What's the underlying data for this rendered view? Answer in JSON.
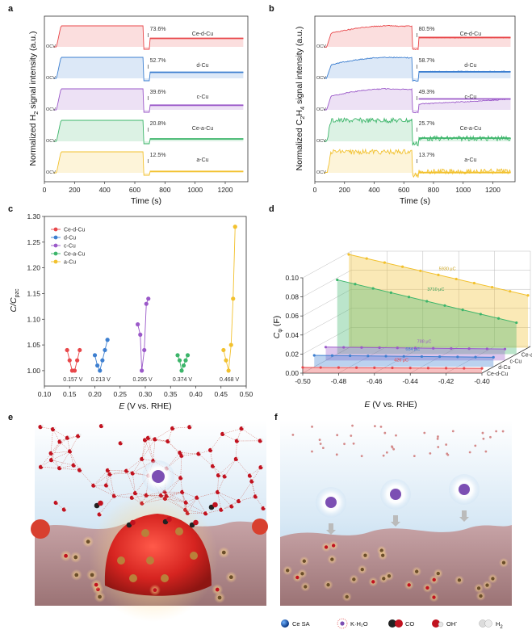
{
  "panels": {
    "a": "a",
    "b": "b",
    "c": "c",
    "d": "d",
    "e": "e",
    "f": "f"
  },
  "ocv_label": "OCV",
  "colors": {
    "Ce-d-Cu": "#e8474a",
    "d-Cu": "#3d7fd0",
    "c-Cu": "#9b59c9",
    "Ce-a-Cu": "#3cb56a",
    "a-Cu": "#f2c12e"
  },
  "chart_data": [
    {
      "type": "line",
      "id": "a",
      "xlabel": "Time (s)",
      "ylabel_parts": [
        "Normalized H",
        "2",
        " signal intensity (a.u.)"
      ],
      "xlim": [
        0,
        1350
      ],
      "xticks": [
        0,
        200,
        400,
        600,
        800,
        1000,
        1200
      ],
      "series": [
        {
          "name": "Ce-d-Cu",
          "percent": "73.6%"
        },
        {
          "name": "d-Cu",
          "percent": "52.7%"
        },
        {
          "name": "c-Cu",
          "percent": "39.6%"
        },
        {
          "name": "Ce-a-Cu",
          "percent": "20.8%"
        },
        {
          "name": "a-Cu",
          "percent": "12.5%"
        }
      ]
    },
    {
      "type": "line",
      "id": "b",
      "xlabel": "Time (s)",
      "ylabel_parts": [
        "Normalized C",
        "2",
        "H",
        "4",
        " signal intensity (a.u.)"
      ],
      "xlim": [
        0,
        1350
      ],
      "xticks": [
        0,
        200,
        400,
        600,
        800,
        1000,
        1200
      ],
      "series": [
        {
          "name": "Ce-d-Cu",
          "percent": "80.5%"
        },
        {
          "name": "d-Cu",
          "percent": "58.7%"
        },
        {
          "name": "c-Cu",
          "percent": "49.3%"
        },
        {
          "name": "Ce-a-Cu",
          "percent": "25.7%"
        },
        {
          "name": "a-Cu",
          "percent": "13.7%"
        }
      ]
    },
    {
      "type": "scatter",
      "id": "c",
      "xlabel_parts": [
        "E",
        " (V vs. RHE)"
      ],
      "ylabel_parts": [
        "C/C",
        "pzc"
      ],
      "xlim": [
        0.1,
        0.5
      ],
      "ylim": [
        0.97,
        1.3
      ],
      "xticks": [
        "0.10",
        "0.15",
        "0.20",
        "0.25",
        "0.30",
        "0.35",
        "0.40",
        "0.45",
        "0.50"
      ],
      "yticks": [
        "1.00",
        "1.05",
        "1.10",
        "1.15",
        "1.20",
        "1.25",
        "1.30"
      ],
      "legend": "top-left",
      "series": [
        {
          "name": "Ce-d-Cu",
          "pzc": "0.157 V",
          "x": [
            0.145,
            0.15,
            0.155,
            0.16,
            0.165,
            0.17
          ],
          "y": [
            1.04,
            1.02,
            1.0,
            1.0,
            1.02,
            1.04
          ]
        },
        {
          "name": "d-Cu",
          "pzc": "0.213 V",
          "x": [
            0.2,
            0.205,
            0.21,
            0.215,
            0.22,
            0.225
          ],
          "y": [
            1.03,
            1.01,
            1.0,
            1.02,
            1.04,
            1.06
          ]
        },
        {
          "name": "c-Cu",
          "pzc": "0.295 V",
          "x": [
            0.285,
            0.29,
            0.293,
            0.298,
            0.302,
            0.306
          ],
          "y": [
            1.09,
            1.07,
            1.0,
            1.04,
            1.13,
            1.14
          ]
        },
        {
          "name": "Ce-a-Cu",
          "pzc": "0.374 V",
          "x": [
            0.364,
            0.368,
            0.372,
            0.376,
            0.38,
            0.384
          ],
          "y": [
            1.03,
            1.02,
            1.0,
            1.01,
            1.02,
            1.03
          ]
        },
        {
          "name": "a-Cu",
          "pzc": "0.468 V",
          "x": [
            0.455,
            0.46,
            0.465,
            0.47,
            0.474,
            0.478
          ],
          "y": [
            1.04,
            1.02,
            1.0,
            1.05,
            1.14,
            1.28
          ]
        }
      ]
    },
    {
      "type": "area",
      "id": "d",
      "xlabel_parts": [
        "E",
        " (V vs. RHE)"
      ],
      "ylabel_parts": [
        "C",
        "φ",
        " (F)"
      ],
      "xlim": [
        -0.5,
        -0.4
      ],
      "ylim": [
        0,
        0.1
      ],
      "xticks": [
        "-0.50",
        "-0.48",
        "-0.46",
        "-0.44",
        "-0.42",
        "-0.40"
      ],
      "yticks": [
        "0.00",
        "0.02",
        "0.04",
        "0.06",
        "0.08",
        "0.10"
      ],
      "series": [
        {
          "name": "Ce-d-Cu",
          "charge": "426 μC"
        },
        {
          "name": "d-Cu",
          "charge": "684 μC"
        },
        {
          "name": "c-Cu",
          "charge": "788 μC"
        },
        {
          "name": "Ce-a-Cu",
          "charge": "3710 μC"
        },
        {
          "name": "a-Cu",
          "charge": "5930 μC"
        }
      ]
    }
  ],
  "legend_f": {
    "ce": "Ce SA",
    "kh2o": "K·H₂O",
    "co": "CO",
    "oh_parts": [
      "OH",
      "-"
    ],
    "h2_parts": [
      "H",
      "2"
    ]
  }
}
